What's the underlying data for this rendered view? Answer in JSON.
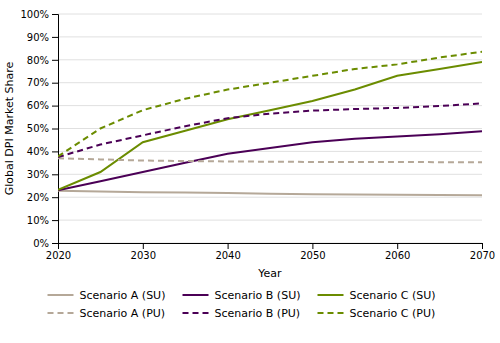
{
  "chart_data": {
    "type": "line",
    "x": [
      2020,
      2025,
      2030,
      2035,
      2040,
      2045,
      2050,
      2055,
      2060,
      2065,
      2070
    ],
    "series": [
      {
        "name": "Scenario A (SU)",
        "color": "#b5a898",
        "line_style": "solid",
        "values": [
          0.228,
          0.225,
          0.222,
          0.22,
          0.218,
          0.215,
          0.213,
          0.212,
          0.211,
          0.21,
          0.209
        ]
      },
      {
        "name": "Scenario B (SU)",
        "color": "#4b0056",
        "line_style": "solid",
        "values": [
          0.23,
          0.27,
          0.31,
          0.35,
          0.39,
          0.415,
          0.44,
          0.455,
          0.465,
          0.475,
          0.488
        ]
      },
      {
        "name": "Scenario C (SU)",
        "color": "#6b8c00",
        "line_style": "solid",
        "values": [
          0.232,
          0.31,
          0.44,
          0.49,
          0.54,
          0.58,
          0.62,
          0.67,
          0.73,
          0.76,
          0.79
        ]
      },
      {
        "name": "Scenario A (PU)",
        "color": "#b5a898",
        "line_style": "dashed",
        "values": [
          0.37,
          0.365,
          0.36,
          0.358,
          0.356,
          0.355,
          0.354,
          0.354,
          0.354,
          0.353,
          0.353
        ]
      },
      {
        "name": "Scenario B (PU)",
        "color": "#4b0056",
        "line_style": "dashed",
        "values": [
          0.375,
          0.43,
          0.47,
          0.51,
          0.545,
          0.565,
          0.578,
          0.585,
          0.59,
          0.598,
          0.61
        ]
      },
      {
        "name": "Scenario C (PU)",
        "color": "#6b8c00",
        "line_style": "dashed",
        "values": [
          0.378,
          0.5,
          0.58,
          0.63,
          0.67,
          0.7,
          0.73,
          0.76,
          0.78,
          0.81,
          0.835
        ]
      }
    ],
    "xlabel": "Year",
    "ylabel": "Global DPI Market Share",
    "xlim": [
      2020,
      2070
    ],
    "xticks": [
      2020,
      2030,
      2040,
      2050,
      2060,
      2070
    ],
    "ylim": [
      0.0,
      1.0
    ],
    "yticks": [
      {
        "value": 0.0,
        "label": "0%"
      },
      {
        "value": 0.1,
        "label": "10%"
      },
      {
        "value": 0.2,
        "label": "20%"
      },
      {
        "value": 0.3,
        "label": "30%"
      },
      {
        "value": 0.4,
        "label": "40%"
      },
      {
        "value": 0.5,
        "label": "50%"
      },
      {
        "value": 0.6,
        "label": "60%"
      },
      {
        "value": 0.7,
        "label": "70%"
      },
      {
        "value": 0.8,
        "label": "80%"
      },
      {
        "value": 0.9,
        "label": "90%"
      },
      {
        "value": 1.0,
        "label": "100%"
      }
    ],
    "grid": true,
    "legend": "bottom"
  }
}
